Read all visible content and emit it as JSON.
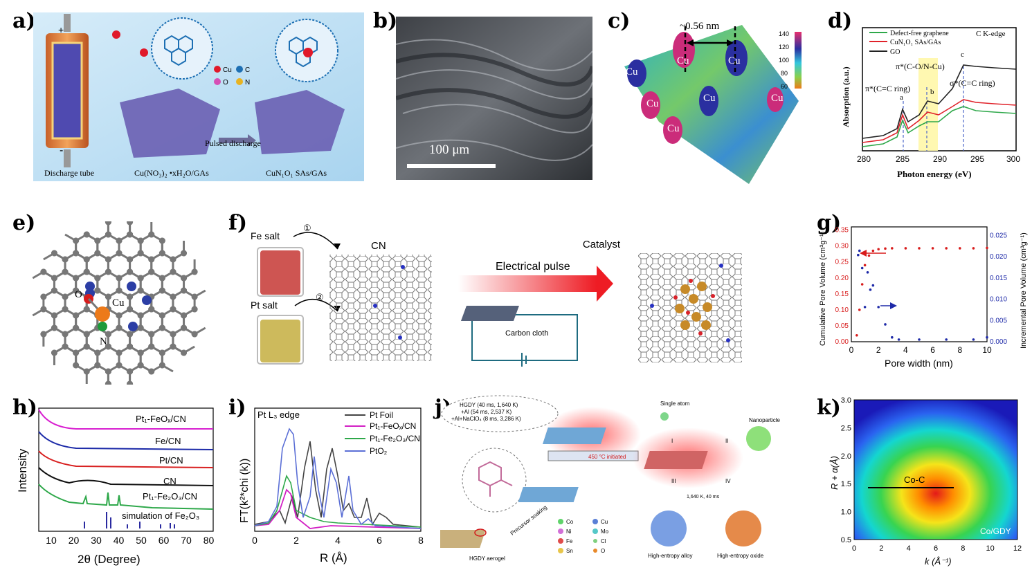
{
  "panel_labels": [
    "a)",
    "b)",
    "c)",
    "d)",
    "e)",
    "f)",
    "g)",
    "h)",
    "i)",
    "j)",
    "k)"
  ],
  "a": {
    "legend": {
      "cu": "Cu",
      "c": "C",
      "o": "O",
      "n": "N"
    },
    "plus": "+",
    "minus": "-",
    "arrow_label": "Pulsed discharge",
    "captions": [
      "Discharge tube",
      "Cu(NO₃)₂ •xH₂O/GAs",
      "CuN₁O₁ SAs/GAs"
    ],
    "colors": {
      "cu": "#e0192a",
      "c": "#1d6fb3",
      "o": "#d64fb5",
      "n": "#e8b321"
    }
  },
  "b": {
    "scale": "100 μm"
  },
  "c": {
    "distance": "~0.56 nm",
    "atom_label": "Cu",
    "colorbar_ticks": [
      "140",
      "120",
      "100",
      "80",
      "60"
    ]
  },
  "d": {
    "edge": "C K-edge",
    "ylabel": "Absorption (a.u.)",
    "xlabel": "Photon energy (eV)",
    "legend": [
      "Defect-free graphene",
      "CuN₁O₁ SAs/GAs",
      "GO"
    ],
    "annotations": [
      "π*(C=C ring)",
      "π*(C-O/N-Cu)",
      "σ*(C=C ring)",
      "a",
      "b",
      "c"
    ]
  },
  "e": {
    "labels": {
      "o": "O",
      "cu": "Cu",
      "n": "N"
    }
  },
  "f": {
    "fe_salt": "Fe salt",
    "pt_salt": "Pt salt",
    "step1": "①",
    "step2": "②",
    "cn": "CN",
    "pulse": "Electrical pulse",
    "cloth": "Carbon cloth",
    "catalyst": "Catalyst"
  },
  "g": {
    "xlabel": "Pore width (nm)",
    "ylabel_left": "Cumulative Pore Volume (cm³g⁻¹)",
    "ylabel_right": "Incremental Pore Volume (cm³g⁻¹)",
    "xticks": [
      "0",
      "2",
      "4",
      "6",
      "8",
      "10"
    ],
    "yticks_left": [
      "0.00",
      "0.05",
      "0.10",
      "0.15",
      "0.20",
      "0.25",
      "0.30",
      "0.35"
    ],
    "yticks_right": [
      "0.000",
      "0.005",
      "0.010",
      "0.015",
      "0.020",
      "0.025"
    ]
  },
  "h": {
    "ylabel": "Intensity",
    "xlabel": "2θ (Degree)",
    "xticks": [
      "10",
      "20",
      "30",
      "40",
      "50",
      "60",
      "70",
      "80"
    ],
    "traces": [
      "Pt₁-FeOₓ/CN",
      "Fe/CN",
      "Pt/CN",
      "CN",
      "Pt₁-Fe₂O₃/CN",
      "simulation of Fe₂O₃"
    ]
  },
  "i": {
    "edge": "Pt L₃ edge",
    "ylabel": "FT(k²*chi (k))",
    "xlabel": "R (Å)",
    "xticks": [
      "0",
      "2",
      "4",
      "6",
      "8"
    ],
    "legend": [
      "Pt Foil",
      "Pt₁-FeOₓ/CN",
      "Pt₁-Fe₂O₃/CN",
      "PtO₂"
    ],
    "colors": [
      "#444444",
      "#d21fc4",
      "#2ea84a",
      "#5b6fd6"
    ]
  },
  "j": {
    "bubble": [
      "HGDY (40 ms, 1,640 K)",
      "+Al (54 ms, 2,537 K)",
      "+Al+NaClO₄ (8 ms, 3,286 K)"
    ],
    "initiated": "450 °C initiated",
    "precursor": "Precursor soaking",
    "aerogel": "HGDY aerogel",
    "single_atom": "Single atom",
    "nanoparticle": "Nanoparticle",
    "routes": [
      "I",
      "II",
      "III",
      "IV"
    ],
    "condition": "1,640 K, 40 ms",
    "hea": "High-entropy alloy",
    "heo": "High-entropy oxide",
    "legend": [
      "Co",
      "Cu",
      "Ni",
      "Mo",
      "Fe",
      "Cl",
      "Sn",
      "O"
    ]
  },
  "k": {
    "ylabel": "R + α(Å)",
    "xlabel": "k (Å⁻¹)",
    "xticks": [
      "0",
      "2",
      "4",
      "6",
      "8",
      "10",
      "12"
    ],
    "yticks": [
      "0.5",
      "1.0",
      "1.5",
      "2.0",
      "2.5",
      "3.0"
    ],
    "band": "Co-C",
    "sample": "Co/GDY"
  }
}
